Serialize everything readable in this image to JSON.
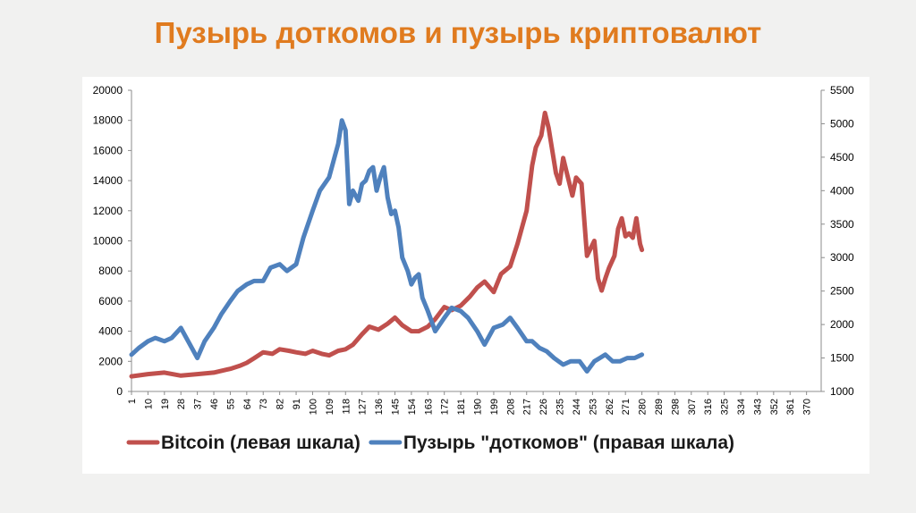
{
  "slide": {
    "title": "Пузырь доткомов и пузырь криптовалют"
  },
  "chart_data": {
    "type": "line",
    "title": "",
    "x_ticks": [
      "1",
      "10",
      "19",
      "28",
      "37",
      "46",
      "55",
      "64",
      "73",
      "82",
      "91",
      "100",
      "109",
      "118",
      "127",
      "136",
      "145",
      "154",
      "163",
      "172",
      "181",
      "190",
      "199",
      "208",
      "217",
      "226",
      "235",
      "244",
      "253",
      "262",
      "271",
      "280",
      "289",
      "298",
      "307",
      "316",
      "325",
      "334",
      "343",
      "352",
      "361",
      "370"
    ],
    "xlim": [
      1,
      378
    ],
    "y_left": {
      "ticks": [
        "0",
        "2000",
        "4000",
        "6000",
        "8000",
        "10000",
        "12000",
        "14000",
        "16000",
        "18000",
        "20000"
      ],
      "lim": [
        0,
        20000
      ]
    },
    "y_right": {
      "ticks": [
        "1000",
        "1500",
        "2000",
        "2500",
        "3000",
        "3500",
        "4000",
        "4500",
        "5000",
        "5500"
      ],
      "lim": [
        1000,
        5500
      ]
    },
    "grid": false,
    "legend": "bottom",
    "series": [
      {
        "name": "Bitcoin (левая шкала)",
        "axis": "left",
        "color": "#c0504d",
        "x": [
          1,
          10,
          19,
          28,
          37,
          46,
          55,
          60,
          64,
          68,
          73,
          78,
          82,
          87,
          91,
          96,
          100,
          105,
          109,
          114,
          118,
          122,
          127,
          131,
          136,
          141,
          145,
          149,
          154,
          158,
          163,
          167,
          172,
          176,
          181,
          186,
          190,
          194,
          199,
          203,
          208,
          212,
          217,
          220,
          222,
          225,
          227,
          229,
          231,
          233,
          235,
          237,
          239,
          242,
          244,
          247,
          250,
          252,
          254,
          256,
          258,
          260,
          262,
          265,
          267,
          269,
          271,
          273,
          275,
          277,
          279,
          280
        ],
        "values": [
          1000,
          1150,
          1250,
          1050,
          1150,
          1250,
          1500,
          1700,
          1900,
          2200,
          2600,
          2500,
          2800,
          2700,
          2600,
          2500,
          2700,
          2500,
          2400,
          2700,
          2800,
          3100,
          3800,
          4300,
          4100,
          4500,
          4900,
          4400,
          4000,
          4000,
          4300,
          4800,
          5600,
          5400,
          5700,
          6300,
          6900,
          7300,
          6600,
          7800,
          8300,
          9800,
          12000,
          15000,
          16200,
          17000,
          18500,
          17500,
          16000,
          14500,
          13800,
          15500,
          14500,
          13000,
          14200,
          13800,
          9000,
          9500,
          10000,
          7500,
          6700,
          7500,
          8200,
          9000,
          10800,
          11500,
          10300,
          10500,
          10200,
          11500,
          9800,
          9400
        ]
      },
      {
        "name": "Пузырь \"доткомов\" (правая шкала)",
        "axis": "right",
        "color": "#4f81bd",
        "x": [
          1,
          5,
          10,
          14,
          19,
          23,
          28,
          33,
          37,
          41,
          46,
          50,
          55,
          59,
          64,
          68,
          73,
          77,
          82,
          86,
          91,
          95,
          100,
          104,
          109,
          112,
          114,
          116,
          118,
          120,
          122,
          125,
          127,
          129,
          131,
          133,
          135,
          137,
          139,
          141,
          143,
          145,
          147,
          149,
          152,
          154,
          156,
          158,
          160,
          163,
          167,
          172,
          176,
          181,
          185,
          190,
          194,
          199,
          204,
          208,
          212,
          217,
          220,
          224,
          228,
          232,
          237,
          241,
          246,
          250,
          254,
          257,
          260,
          264,
          268,
          272,
          276,
          280
        ],
        "values": [
          1550,
          1650,
          1750,
          1800,
          1750,
          1800,
          1950,
          1700,
          1500,
          1750,
          1950,
          2150,
          2350,
          2500,
          2600,
          2650,
          2650,
          2850,
          2900,
          2800,
          2900,
          3300,
          3700,
          4000,
          4200,
          4500,
          4700,
          5050,
          4900,
          3800,
          4000,
          3850,
          4100,
          4150,
          4300,
          4350,
          4000,
          4200,
          4350,
          3900,
          3650,
          3700,
          3450,
          3000,
          2800,
          2600,
          2700,
          2750,
          2400,
          2200,
          1900,
          2100,
          2250,
          2200,
          2100,
          1900,
          1700,
          1950,
          2000,
          2100,
          1950,
          1750,
          1750,
          1650,
          1600,
          1500,
          1400,
          1450,
          1450,
          1300,
          1450,
          1500,
          1550,
          1450,
          1450,
          1500,
          1500,
          1550
        ]
      }
    ]
  }
}
